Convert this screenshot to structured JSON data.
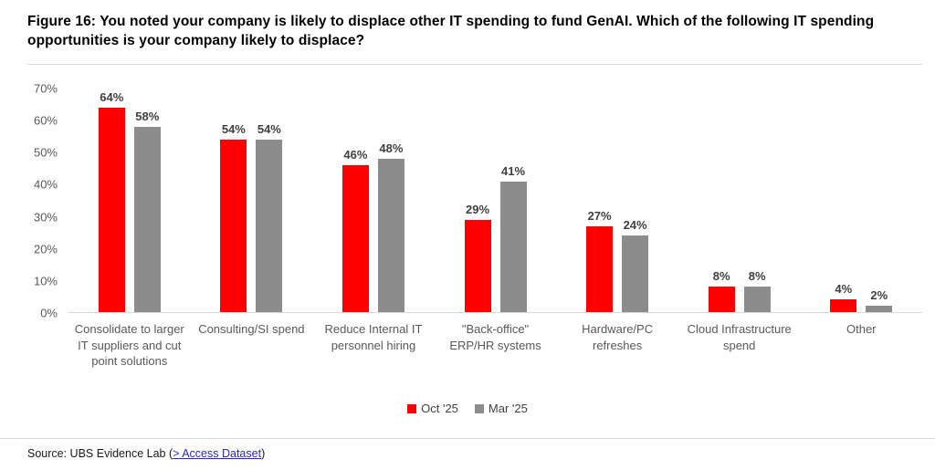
{
  "figure_title": "Figure 16: You noted your company is likely to displace other IT spending to fund GenAI. Which of the following IT spending opportunities is your company likely to displace?",
  "chart_data": {
    "type": "bar",
    "title": "You noted your company is likely to displace other IT spending to fund GenAI. Which of the following IT spending opportunities is your company likely to displace?",
    "categories": [
      "Consolidate to larger IT suppliers and cut point solutions",
      "Consulting/SI spend",
      "Reduce Internal IT personnel hiring",
      "\"Back-office\" ERP/HR systems",
      "Hardware/PC refreshes",
      "Cloud Infrastructure spend",
      "Other"
    ],
    "series": [
      {
        "name": "Oct '25",
        "key": "oct-25",
        "color": "#ff0000",
        "values": [
          64,
          54,
          46,
          29,
          27,
          8,
          4
        ]
      },
      {
        "name": "Mar '25",
        "key": "mar-25",
        "color": "#8c8c8c",
        "values": [
          58,
          54,
          48,
          41,
          24,
          8,
          2
        ]
      }
    ],
    "xlabel": "",
    "ylabel": "",
    "ylim": [
      0,
      70
    ],
    "y_ticks": [
      "0%",
      "10%",
      "20%",
      "30%",
      "40%",
      "50%",
      "60%",
      "70%"
    ],
    "value_suffix": "%",
    "grid": false,
    "legend_position": "bottom-center"
  },
  "source": {
    "prefix": "Source: UBS Evidence Lab (",
    "link_text": "> Access Dataset",
    "suffix": ")"
  },
  "colors": {
    "accent_red": "#ff0000",
    "series_gray": "#8c8c8c",
    "axis_text": "#595959",
    "value_label_text": "#404040",
    "separator": "#d9d9d9",
    "link_blue": "#2a2ac4"
  }
}
